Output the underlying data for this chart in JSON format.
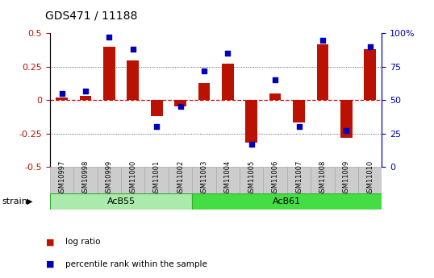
{
  "title": "GDS471 / 11188",
  "samples": [
    "GSM10997",
    "GSM10998",
    "GSM10999",
    "GSM11000",
    "GSM11001",
    "GSM11002",
    "GSM11003",
    "GSM11004",
    "GSM11005",
    "GSM11006",
    "GSM11007",
    "GSM11008",
    "GSM11009",
    "GSM11010"
  ],
  "log_ratio": [
    0.02,
    0.03,
    0.4,
    0.3,
    -0.12,
    -0.05,
    0.13,
    0.27,
    -0.32,
    0.05,
    -0.17,
    0.42,
    -0.28,
    0.38
  ],
  "percentile": [
    55,
    57,
    97,
    88,
    30,
    45,
    72,
    85,
    17,
    65,
    30,
    95,
    27,
    90
  ],
  "acb55_range": [
    0,
    5
  ],
  "acb61_range": [
    6,
    13
  ],
  "acb55_label": "AcB55",
  "acb61_label": "AcB61",
  "acb55_color": "#aaeaaa",
  "acb61_color": "#44dd44",
  "bar_color": "#bb1100",
  "dot_color": "#0000bb",
  "left_ylim": [
    -0.5,
    0.5
  ],
  "right_ylim": [
    0,
    100
  ],
  "left_yticks": [
    -0.5,
    -0.25,
    0,
    0.25,
    0.5
  ],
  "left_yticklabels": [
    "-0.5",
    "-0.25",
    "0",
    "0.25",
    "0.5"
  ],
  "right_yticks": [
    0,
    25,
    50,
    75,
    100
  ],
  "right_yticklabels": [
    "0",
    "25",
    "50",
    "75",
    "100%"
  ],
  "hline_color": "#dd0000",
  "dotted_color": "#333333",
  "bg_color": "#ffffff",
  "sample_box_color": "#cccccc",
  "sample_box_edge": "#aaaaaa",
  "title_fontsize": 10,
  "axis_fontsize": 8,
  "sample_fontsize": 6,
  "group_fontsize": 8,
  "legend_fontsize": 7.5,
  "strain_label": "strain",
  "legend_items": [
    "log ratio",
    "percentile rank within the sample"
  ],
  "bar_width": 0.5
}
